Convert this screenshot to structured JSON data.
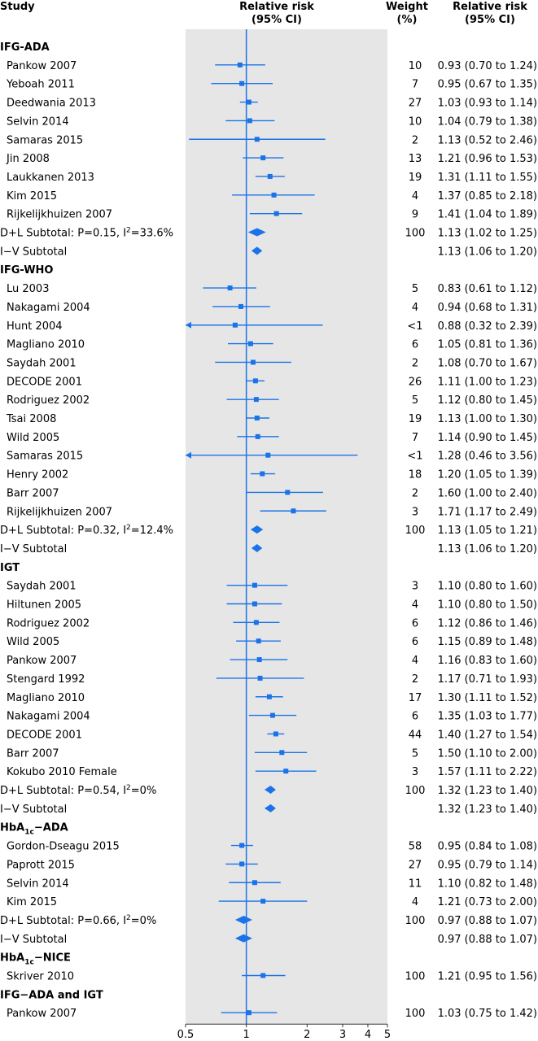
{
  "headers": {
    "study": "Study",
    "rr": [
      "Relative risk",
      "(95% CI)"
    ],
    "weight": [
      "Weight",
      "(%)"
    ],
    "rr_ci": [
      "Relative risk",
      "(95% CI)"
    ]
  },
  "colors": {
    "marker": "#1a73e8",
    "panel": "#e6e6e6",
    "text": "#111111"
  },
  "chart_data": {
    "type": "forest",
    "x_scale": "log",
    "xlim": [
      0.5,
      5
    ],
    "reference_line": 1,
    "x_ticks": [
      0.5,
      1,
      2,
      3,
      4,
      5
    ],
    "x_tick_labels": [
      "0.5",
      "1",
      "2",
      "3",
      "4",
      "5"
    ],
    "rows": [
      {
        "kind": "group",
        "label": "IFG-ADA"
      },
      {
        "kind": "study",
        "label": "Pankow 2007",
        "rr": 0.93,
        "lo": 0.7,
        "hi": 1.24,
        "weight": "10",
        "ci_text": "0.93 (0.70 to 1.24)"
      },
      {
        "kind": "study",
        "label": "Yeboah 2011",
        "rr": 0.95,
        "lo": 0.67,
        "hi": 1.35,
        "weight": "7",
        "ci_text": "0.95 (0.67 to 1.35)"
      },
      {
        "kind": "study",
        "label": "Deedwania 2013",
        "rr": 1.03,
        "lo": 0.93,
        "hi": 1.14,
        "weight": "27",
        "ci_text": "1.03 (0.93 to 1.14)"
      },
      {
        "kind": "study",
        "label": "Selvin 2014",
        "rr": 1.04,
        "lo": 0.79,
        "hi": 1.38,
        "weight": "10",
        "ci_text": "1.04 (0.79 to 1.38)"
      },
      {
        "kind": "study",
        "label": "Samaras 2015",
        "rr": 1.13,
        "lo": 0.52,
        "hi": 2.46,
        "weight": "2",
        "ci_text": "1.13 (0.52 to 2.46)"
      },
      {
        "kind": "study",
        "label": "Jin 2008",
        "rr": 1.21,
        "lo": 0.96,
        "hi": 1.53,
        "weight": "13",
        "ci_text": "1.21 (0.96 to 1.53)"
      },
      {
        "kind": "study",
        "label": "Laukkanen 2013",
        "rr": 1.31,
        "lo": 1.11,
        "hi": 1.55,
        "weight": "19",
        "ci_text": "1.31 (1.11 to 1.55)"
      },
      {
        "kind": "study",
        "label": "Kim 2015",
        "rr": 1.37,
        "lo": 0.85,
        "hi": 2.18,
        "weight": "4",
        "ci_text": "1.37 (0.85 to 2.18)"
      },
      {
        "kind": "study",
        "label": "Rijkelijkhuizen 2007",
        "rr": 1.41,
        "lo": 1.04,
        "hi": 1.89,
        "weight": "9",
        "ci_text": "1.41 (1.04 to 1.89)"
      },
      {
        "kind": "subtotal",
        "label": "D+L Subtotal: P=0.15, I",
        "sup": "2",
        "label_tail": "=33.6%",
        "rr": 1.13,
        "lo": 1.02,
        "hi": 1.25,
        "weight": "100",
        "ci_text": "1.13 (1.02 to 1.25)"
      },
      {
        "kind": "subtotal",
        "label": "I−V Subtotal",
        "rr": 1.13,
        "lo": 1.06,
        "hi": 1.2,
        "weight": "",
        "ci_text": "1.13 (1.06 to 1.20)"
      },
      {
        "kind": "group",
        "label": "IFG-WHO"
      },
      {
        "kind": "study",
        "label": "Lu 2003",
        "rr": 0.83,
        "lo": 0.61,
        "hi": 1.12,
        "weight": "5",
        "ci_text": "0.83 (0.61 to 1.12)"
      },
      {
        "kind": "study",
        "label": "Nakagami 2004",
        "rr": 0.94,
        "lo": 0.68,
        "hi": 1.31,
        "weight": "4",
        "ci_text": "0.94 (0.68 to 1.31)"
      },
      {
        "kind": "study",
        "label": "Hunt 2004",
        "rr": 0.88,
        "lo": 0.32,
        "hi": 2.39,
        "weight": "<1",
        "ci_text": "0.88 (0.32 to 2.39)"
      },
      {
        "kind": "study",
        "label": "Magliano 2010",
        "rr": 1.05,
        "lo": 0.81,
        "hi": 1.36,
        "weight": "6",
        "ci_text": "1.05 (0.81 to 1.36)"
      },
      {
        "kind": "study",
        "label": "Saydah 2001",
        "rr": 1.08,
        "lo": 0.7,
        "hi": 1.67,
        "weight": "2",
        "ci_text": "1.08 (0.70 to 1.67)"
      },
      {
        "kind": "study",
        "label": "DECODE 2001",
        "rr": 1.11,
        "lo": 1.0,
        "hi": 1.23,
        "weight": "26",
        "ci_text": "1.11 (1.00 to 1.23)"
      },
      {
        "kind": "study",
        "label": "Rodriguez 2002",
        "rr": 1.12,
        "lo": 0.8,
        "hi": 1.45,
        "weight": "5",
        "ci_text": "1.12 (0.80 to 1.45)"
      },
      {
        "kind": "study",
        "label": "Tsai 2008",
        "rr": 1.13,
        "lo": 1.0,
        "hi": 1.3,
        "weight": "19",
        "ci_text": "1.13 (1.00 to 1.30)"
      },
      {
        "kind": "study",
        "label": "Wild 2005",
        "rr": 1.14,
        "lo": 0.9,
        "hi": 1.45,
        "weight": "7",
        "ci_text": "1.14 (0.90 to 1.45)"
      },
      {
        "kind": "study",
        "label": "Samaras 2015",
        "rr": 1.28,
        "lo": 0.46,
        "hi": 3.56,
        "weight": "<1",
        "ci_text": "1.28 (0.46 to 3.56)"
      },
      {
        "kind": "study",
        "label": "Henry 2002",
        "rr": 1.2,
        "lo": 1.05,
        "hi": 1.39,
        "weight": "18",
        "ci_text": "1.20 (1.05 to 1.39)"
      },
      {
        "kind": "study",
        "label": "Barr 2007",
        "rr": 1.6,
        "lo": 1.0,
        "hi": 2.4,
        "weight": "2",
        "ci_text": "1.60 (1.00 to 2.40)"
      },
      {
        "kind": "study",
        "label": "Rijkelijkhuizen 2007",
        "rr": 1.71,
        "lo": 1.17,
        "hi": 2.49,
        "weight": "3",
        "ci_text": "1.71 (1.17 to 2.49)"
      },
      {
        "kind": "subtotal",
        "label": "D+L Subtotal: P=0.32, I",
        "sup": "2",
        "label_tail": "=12.4%",
        "rr": 1.13,
        "lo": 1.05,
        "hi": 1.21,
        "weight": "100",
        "ci_text": "1.13 (1.05 to 1.21)"
      },
      {
        "kind": "subtotal",
        "label": "I−V Subtotal",
        "rr": 1.13,
        "lo": 1.06,
        "hi": 1.2,
        "weight": "",
        "ci_text": "1.13 (1.06 to 1.20)"
      },
      {
        "kind": "group",
        "label": "IGT"
      },
      {
        "kind": "study",
        "label": "Saydah 2001",
        "rr": 1.1,
        "lo": 0.8,
        "hi": 1.6,
        "weight": "3",
        "ci_text": "1.10 (0.80 to 1.60)"
      },
      {
        "kind": "study",
        "label": "Hiltunen 2005",
        "rr": 1.1,
        "lo": 0.8,
        "hi": 1.5,
        "weight": "4",
        "ci_text": "1.10 (0.80 to 1.50)"
      },
      {
        "kind": "study",
        "label": "Rodriguez 2002",
        "rr": 1.12,
        "lo": 0.86,
        "hi": 1.46,
        "weight": "6",
        "ci_text": "1.12 (0.86 to 1.46)"
      },
      {
        "kind": "study",
        "label": "Wild 2005",
        "rr": 1.15,
        "lo": 0.89,
        "hi": 1.48,
        "weight": "6",
        "ci_text": "1.15 (0.89 to 1.48)"
      },
      {
        "kind": "study",
        "label": "Pankow 2007",
        "rr": 1.16,
        "lo": 0.83,
        "hi": 1.6,
        "weight": "4",
        "ci_text": "1.16 (0.83 to 1.60)"
      },
      {
        "kind": "study",
        "label": "Stengard 1992",
        "rr": 1.17,
        "lo": 0.71,
        "hi": 1.93,
        "weight": "2",
        "ci_text": "1.17 (0.71 to 1.93)"
      },
      {
        "kind": "study",
        "label": "Magliano 2010",
        "rr": 1.3,
        "lo": 1.11,
        "hi": 1.52,
        "weight": "17",
        "ci_text": "1.30 (1.11 to 1.52)"
      },
      {
        "kind": "study",
        "label": "Nakagami 2004",
        "rr": 1.35,
        "lo": 1.03,
        "hi": 1.77,
        "weight": "6",
        "ci_text": "1.35 (1.03 to 1.77)"
      },
      {
        "kind": "study",
        "label": "DECODE 2001",
        "rr": 1.4,
        "lo": 1.27,
        "hi": 1.54,
        "weight": "44",
        "ci_text": "1.40 (1.27 to 1.54)"
      },
      {
        "kind": "study",
        "label": "Barr 2007",
        "rr": 1.5,
        "lo": 1.1,
        "hi": 2.0,
        "weight": "5",
        "ci_text": "1.50 (1.10 to 2.00)"
      },
      {
        "kind": "study",
        "label": "Kokubo 2010 Female",
        "rr": 1.57,
        "lo": 1.11,
        "hi": 2.22,
        "weight": "3",
        "ci_text": "1.57 (1.11 to 2.22)"
      },
      {
        "kind": "subtotal",
        "label": "D+L Subtotal: P=0.54, I",
        "sup": "2",
        "label_tail": "=0%",
        "rr": 1.32,
        "lo": 1.23,
        "hi": 1.4,
        "weight": "100",
        "ci_text": "1.32 (1.23 to 1.40)"
      },
      {
        "kind": "subtotal",
        "label": "I−V Subtotal",
        "rr": 1.32,
        "lo": 1.23,
        "hi": 1.4,
        "weight": "",
        "ci_text": "1.32 (1.23 to 1.40)"
      },
      {
        "kind": "group",
        "label": "HbA",
        "sub": "1c",
        "label_tail": "−ADA"
      },
      {
        "kind": "study",
        "label": "Gordon-Dseagu 2015",
        "rr": 0.95,
        "lo": 0.84,
        "hi": 1.08,
        "weight": "58",
        "ci_text": "0.95 (0.84 to 1.08)"
      },
      {
        "kind": "study",
        "label": "Paprott 2015",
        "rr": 0.95,
        "lo": 0.79,
        "hi": 1.14,
        "weight": "27",
        "ci_text": "0.95 (0.79 to 1.14)"
      },
      {
        "kind": "study",
        "label": "Selvin 2014",
        "rr": 1.1,
        "lo": 0.82,
        "hi": 1.48,
        "weight": "11",
        "ci_text": "1.10 (0.82 to 1.48)"
      },
      {
        "kind": "study",
        "label": "Kim 2015",
        "rr": 1.21,
        "lo": 0.73,
        "hi": 2.0,
        "weight": "4",
        "ci_text": "1.21 (0.73 to 2.00)"
      },
      {
        "kind": "subtotal",
        "label": "D+L Subtotal: P=0.66, I",
        "sup": "2",
        "label_tail": "=0%",
        "rr": 0.97,
        "lo": 0.88,
        "hi": 1.07,
        "weight": "100",
        "ci_text": "0.97 (0.88 to 1.07)"
      },
      {
        "kind": "subtotal",
        "label": "I−V Subtotal",
        "rr": 0.97,
        "lo": 0.88,
        "hi": 1.07,
        "weight": "",
        "ci_text": "0.97 (0.88 to 1.07)"
      },
      {
        "kind": "group",
        "label": "HbA",
        "sub": "1c",
        "label_tail": "−NICE"
      },
      {
        "kind": "study",
        "label": "Skriver 2010",
        "rr": 1.21,
        "lo": 0.95,
        "hi": 1.56,
        "weight": "100",
        "ci_text": "1.21 (0.95 to 1.56)"
      },
      {
        "kind": "group",
        "label": "IFG−ADA and IGT"
      },
      {
        "kind": "study",
        "label": "Pankow 2007",
        "rr": 1.03,
        "lo": 0.75,
        "hi": 1.42,
        "weight": "100",
        "ci_text": "1.03 (0.75 to 1.42)"
      }
    ]
  }
}
